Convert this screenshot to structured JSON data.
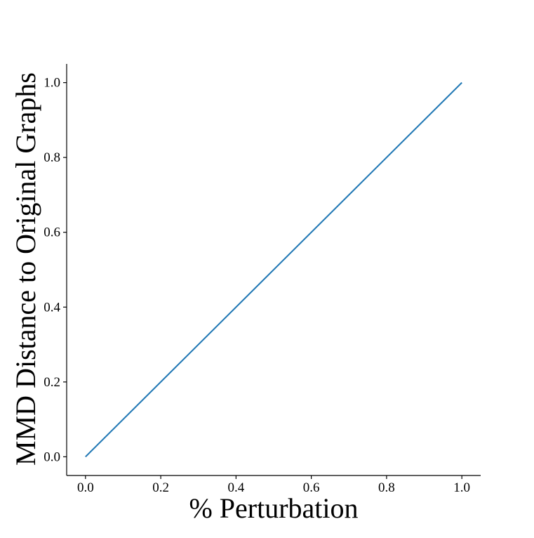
{
  "chart_data": {
    "type": "line",
    "title": "",
    "xlabel": "% Perturbation",
    "ylabel": "MMD Distance to Original Graphs",
    "xlim": [
      -0.05,
      1.05
    ],
    "ylim": [
      -0.05,
      1.05
    ],
    "xticks": [
      "0.0",
      "0.2",
      "0.4",
      "0.6",
      "0.8",
      "1.0"
    ],
    "yticks": [
      "0.0",
      "0.2",
      "0.4",
      "0.6",
      "0.8",
      "1.0"
    ],
    "grid": false,
    "legend": "none",
    "series": [
      {
        "color": "#1f77b4",
        "x": [
          0.0,
          1.0
        ],
        "y": [
          0.0,
          1.0
        ]
      }
    ]
  }
}
